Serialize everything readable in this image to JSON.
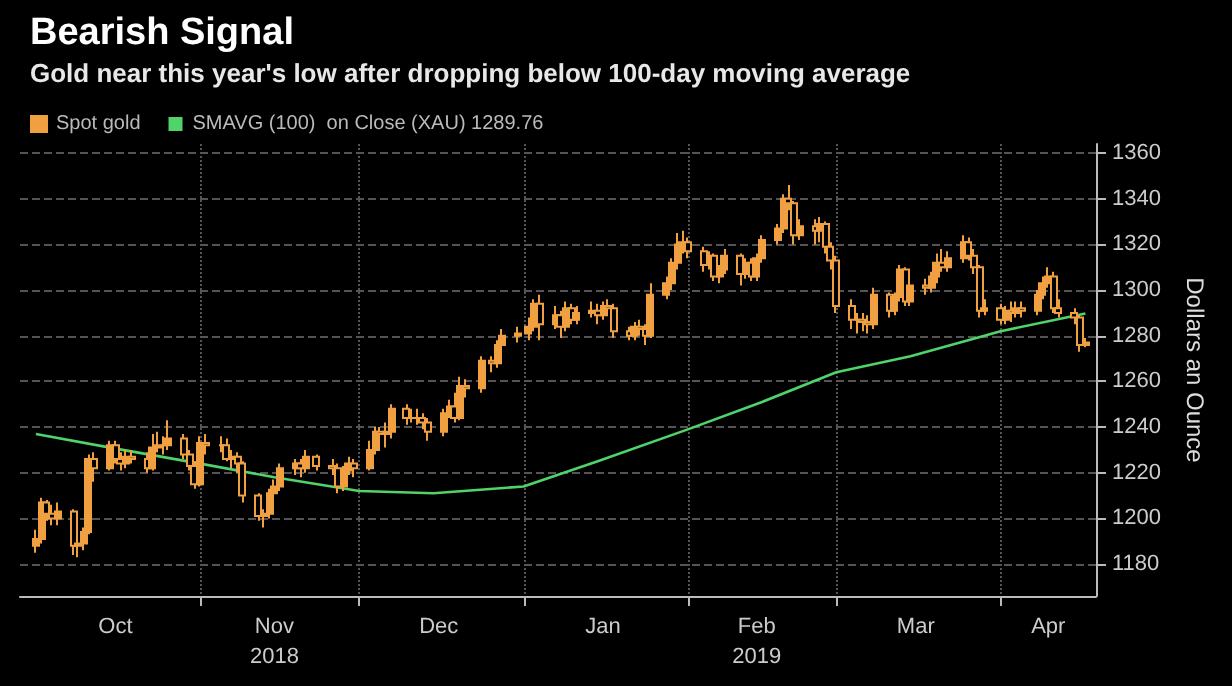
{
  "chart_data": {
    "type": "candlestick",
    "title": "Bearish Signal",
    "subtitle": "Gold near this year's low after dropping below 100-day moving average",
    "ylabel": "Dollars an Ounce",
    "xlim": [
      "2018-09-28",
      "2019-04-19"
    ],
    "xticks": [
      {
        "value": "2018-10-16",
        "label": "Oct"
      },
      {
        "value": "2018-11-01",
        "label": null
      },
      {
        "value": "2018-11-15",
        "label": "Nov\n2018"
      },
      {
        "value": "2018-12-01",
        "label": null
      },
      {
        "value": "2018-12-16",
        "label": "Dec"
      },
      {
        "value": "2019-01-01",
        "label": null
      },
      {
        "value": "2019-01-16",
        "label": "Jan"
      },
      {
        "value": "2019-02-01",
        "label": null
      },
      {
        "value": "2019-02-14",
        "label": "Feb\n2019"
      },
      {
        "value": "2019-03-01",
        "label": null
      },
      {
        "value": "2019-03-16",
        "label": "Mar"
      },
      {
        "value": "2019-04-01",
        "label": null
      },
      {
        "value": "2019-04-10",
        "label": "Apr"
      }
    ],
    "ylim": [
      1166,
      1364
    ],
    "yticks": [
      1180,
      1200,
      1220,
      1240,
      1260,
      1280,
      1300,
      1320,
      1340,
      1360
    ],
    "grid": true,
    "legend": "top left",
    "series": [
      {
        "name": "Spot gold",
        "type": "candlestick",
        "color": "#f0a040",
        "x": [
          "2018-10-01",
          "2018-10-02",
          "2018-10-03",
          "2018-10-04",
          "2018-10-05",
          "2018-10-08",
          "2018-10-09",
          "2018-10-10",
          "2018-10-11",
          "2018-10-12",
          "2018-10-15",
          "2018-10-16",
          "2018-10-17",
          "2018-10-18",
          "2018-10-19",
          "2018-10-22",
          "2018-10-23",
          "2018-10-24",
          "2018-10-25",
          "2018-10-26",
          "2018-10-29",
          "2018-10-30",
          "2018-10-31",
          "2018-11-01",
          "2018-11-02",
          "2018-11-05",
          "2018-11-06",
          "2018-11-07",
          "2018-11-08",
          "2018-11-09",
          "2018-11-12",
          "2018-11-13",
          "2018-11-14",
          "2018-11-15",
          "2018-11-16",
          "2018-11-19",
          "2018-11-20",
          "2018-11-21",
          "2018-11-23",
          "2018-11-26",
          "2018-11-27",
          "2018-11-28",
          "2018-11-29",
          "2018-11-30",
          "2018-12-03",
          "2018-12-04",
          "2018-12-05",
          "2018-12-06",
          "2018-12-07",
          "2018-12-10",
          "2018-12-11",
          "2018-12-12",
          "2018-12-13",
          "2018-12-14",
          "2018-12-17",
          "2018-12-18",
          "2018-12-19",
          "2018-12-20",
          "2018-12-21",
          "2018-12-24",
          "2018-12-26",
          "2018-12-27",
          "2018-12-28",
          "2018-12-31",
          "2019-01-02",
          "2019-01-03",
          "2019-01-04",
          "2019-01-07",
          "2019-01-08",
          "2019-01-09",
          "2019-01-10",
          "2019-01-11",
          "2019-01-14",
          "2019-01-15",
          "2019-01-16",
          "2019-01-17",
          "2019-01-18",
          "2019-01-21",
          "2019-01-22",
          "2019-01-23",
          "2019-01-24",
          "2019-01-25",
          "2019-01-28",
          "2019-01-29",
          "2019-01-30",
          "2019-01-31",
          "2019-02-01",
          "2019-02-04",
          "2019-02-05",
          "2019-02-06",
          "2019-02-07",
          "2019-02-08",
          "2019-02-11",
          "2019-02-12",
          "2019-02-13",
          "2019-02-14",
          "2019-02-15",
          "2019-02-18",
          "2019-02-19",
          "2019-02-20",
          "2019-02-21",
          "2019-02-22",
          "2019-02-25",
          "2019-02-26",
          "2019-02-27",
          "2019-02-28",
          "2019-03-01",
          "2019-03-04",
          "2019-03-05",
          "2019-03-06",
          "2019-03-07",
          "2019-03-08",
          "2019-03-11",
          "2019-03-12",
          "2019-03-13",
          "2019-03-14",
          "2019-03-15",
          "2019-03-18",
          "2019-03-19",
          "2019-03-20",
          "2019-03-21",
          "2019-03-22",
          "2019-03-25",
          "2019-03-26",
          "2019-03-27",
          "2019-03-28",
          "2019-03-29",
          "2019-04-01",
          "2019-04-02",
          "2019-04-03",
          "2019-04-04",
          "2019-04-05",
          "2019-04-08",
          "2019-04-09",
          "2019-04-10",
          "2019-04-11",
          "2019-04-12",
          "2019-04-15",
          "2019-04-16",
          "2019-04-17"
        ],
        "ohlc": [
          [
            1188,
            1195,
            1185,
            1191
          ],
          [
            1191,
            1209,
            1189,
            1207
          ],
          [
            1207,
            1208,
            1199,
            1202
          ],
          [
            1202,
            1206,
            1197,
            1200
          ],
          [
            1200,
            1207,
            1197,
            1203
          ],
          [
            1203,
            1204,
            1184,
            1188
          ],
          [
            1188,
            1192,
            1183,
            1189
          ],
          [
            1189,
            1196,
            1186,
            1194
          ],
          [
            1194,
            1228,
            1193,
            1226
          ],
          [
            1226,
            1229,
            1216,
            1222
          ],
          [
            1222,
            1234,
            1221,
            1232
          ],
          [
            1232,
            1234,
            1224,
            1226
          ],
          [
            1226,
            1229,
            1221,
            1224
          ],
          [
            1224,
            1230,
            1222,
            1227
          ],
          [
            1227,
            1230,
            1224,
            1226
          ],
          [
            1226,
            1229,
            1220,
            1222
          ],
          [
            1222,
            1237,
            1221,
            1231
          ],
          [
            1231,
            1238,
            1229,
            1232
          ],
          [
            1232,
            1236,
            1228,
            1232
          ],
          [
            1232,
            1243,
            1230,
            1235
          ],
          [
            1235,
            1237,
            1226,
            1228
          ],
          [
            1228,
            1230,
            1221,
            1223
          ],
          [
            1223,
            1225,
            1213,
            1215
          ],
          [
            1215,
            1236,
            1214,
            1233
          ],
          [
            1233,
            1237,
            1228,
            1232
          ],
          [
            1232,
            1236,
            1229,
            1232
          ],
          [
            1232,
            1235,
            1225,
            1226
          ],
          [
            1226,
            1230,
            1222,
            1227
          ],
          [
            1227,
            1229,
            1220,
            1224
          ],
          [
            1224,
            1225,
            1207,
            1210
          ],
          [
            1210,
            1211,
            1199,
            1201
          ],
          [
            1201,
            1204,
            1196,
            1202
          ],
          [
            1202,
            1213,
            1200,
            1211
          ],
          [
            1211,
            1217,
            1208,
            1214
          ],
          [
            1214,
            1224,
            1212,
            1222
          ],
          [
            1222,
            1226,
            1219,
            1224
          ],
          [
            1224,
            1226,
            1218,
            1222
          ],
          [
            1222,
            1230,
            1220,
            1227
          ],
          [
            1227,
            1228,
            1221,
            1223
          ],
          [
            1223,
            1226,
            1219,
            1222
          ],
          [
            1222,
            1224,
            1211,
            1214
          ],
          [
            1214,
            1223,
            1212,
            1221
          ],
          [
            1221,
            1227,
            1219,
            1224
          ],
          [
            1224,
            1226,
            1218,
            1222
          ],
          [
            1222,
            1234,
            1221,
            1230
          ],
          [
            1230,
            1240,
            1228,
            1238
          ],
          [
            1238,
            1240,
            1234,
            1237
          ],
          [
            1237,
            1242,
            1231,
            1238
          ],
          [
            1238,
            1250,
            1235,
            1248
          ],
          [
            1248,
            1250,
            1241,
            1244
          ],
          [
            1244,
            1248,
            1242,
            1244
          ],
          [
            1244,
            1248,
            1241,
            1244
          ],
          [
            1244,
            1246,
            1239,
            1242
          ],
          [
            1242,
            1244,
            1234,
            1238
          ],
          [
            1238,
            1248,
            1236,
            1246
          ],
          [
            1246,
            1252,
            1244,
            1249
          ],
          [
            1249,
            1255,
            1242,
            1244
          ],
          [
            1244,
            1262,
            1243,
            1258
          ],
          [
            1258,
            1261,
            1253,
            1257
          ],
          [
            1257,
            1271,
            1255,
            1269
          ],
          [
            1269,
            1271,
            1264,
            1268
          ],
          [
            1268,
            1278,
            1266,
            1276
          ],
          [
            1276,
            1283,
            1274,
            1280
          ],
          [
            1280,
            1284,
            1277,
            1281
          ],
          [
            1281,
            1288,
            1278,
            1284
          ],
          [
            1284,
            1296,
            1282,
            1294
          ],
          [
            1294,
            1298,
            1278,
            1285
          ],
          [
            1285,
            1293,
            1283,
            1289
          ],
          [
            1289,
            1291,
            1279,
            1284
          ],
          [
            1284,
            1295,
            1282,
            1292
          ],
          [
            1292,
            1294,
            1285,
            1287
          ],
          [
            1287,
            1293,
            1285,
            1290
          ],
          [
            1290,
            1295,
            1288,
            1291
          ],
          [
            1291,
            1294,
            1285,
            1289
          ],
          [
            1289,
            1295,
            1287,
            1293
          ],
          [
            1293,
            1296,
            1289,
            1292
          ],
          [
            1292,
            1294,
            1279,
            1282
          ],
          [
            1282,
            1284,
            1278,
            1280
          ],
          [
            1280,
            1286,
            1278,
            1284
          ],
          [
            1284,
            1287,
            1280,
            1283
          ],
          [
            1283,
            1285,
            1276,
            1280
          ],
          [
            1280,
            1303,
            1279,
            1298
          ],
          [
            1298,
            1306,
            1296,
            1303
          ],
          [
            1303,
            1314,
            1300,
            1312
          ],
          [
            1312,
            1325,
            1309,
            1320
          ],
          [
            1320,
            1326,
            1316,
            1321
          ],
          [
            1321,
            1323,
            1314,
            1317
          ],
          [
            1317,
            1319,
            1308,
            1311
          ],
          [
            1311,
            1317,
            1309,
            1315
          ],
          [
            1315,
            1316,
            1304,
            1306
          ],
          [
            1306,
            1311,
            1303,
            1309
          ],
          [
            1309,
            1318,
            1307,
            1315
          ],
          [
            1315,
            1316,
            1302,
            1307
          ],
          [
            1307,
            1314,
            1305,
            1312
          ],
          [
            1312,
            1314,
            1304,
            1306
          ],
          [
            1306,
            1316,
            1304,
            1314
          ],
          [
            1314,
            1324,
            1312,
            1322
          ],
          [
            1322,
            1329,
            1320,
            1327
          ],
          [
            1327,
            1342,
            1325,
            1340
          ],
          [
            1340,
            1346,
            1335,
            1338
          ],
          [
            1338,
            1339,
            1320,
            1324
          ],
          [
            1324,
            1331,
            1322,
            1328
          ],
          [
            1328,
            1331,
            1320,
            1326
          ],
          [
            1326,
            1332,
            1321,
            1329
          ],
          [
            1329,
            1330,
            1316,
            1319
          ],
          [
            1319,
            1321,
            1309,
            1313
          ],
          [
            1313,
            1315,
            1290,
            1293
          ],
          [
            1293,
            1296,
            1283,
            1287
          ],
          [
            1287,
            1290,
            1281,
            1287
          ],
          [
            1287,
            1290,
            1282,
            1286
          ],
          [
            1286,
            1289,
            1281,
            1285
          ],
          [
            1285,
            1301,
            1283,
            1298
          ],
          [
            1298,
            1299,
            1288,
            1291
          ],
          [
            1291,
            1299,
            1289,
            1297
          ],
          [
            1297,
            1311,
            1295,
            1309
          ],
          [
            1309,
            1310,
            1293,
            1295
          ],
          [
            1295,
            1304,
            1293,
            1302
          ],
          [
            1302,
            1305,
            1298,
            1301
          ],
          [
            1301,
            1308,
            1299,
            1306
          ],
          [
            1306,
            1316,
            1303,
            1312
          ],
          [
            1312,
            1318,
            1308,
            1310
          ],
          [
            1310,
            1317,
            1308,
            1314
          ],
          [
            1314,
            1324,
            1312,
            1321
          ],
          [
            1321,
            1323,
            1313,
            1315
          ],
          [
            1315,
            1318,
            1307,
            1310
          ],
          [
            1310,
            1311,
            1288,
            1291
          ],
          [
            1291,
            1296,
            1289,
            1292
          ],
          [
            1292,
            1294,
            1285,
            1287
          ],
          [
            1287,
            1293,
            1285,
            1291
          ],
          [
            1291,
            1295,
            1286,
            1290
          ],
          [
            1290,
            1295,
            1288,
            1292
          ],
          [
            1292,
            1295,
            1288,
            1291
          ],
          [
            1291,
            1300,
            1289,
            1298
          ],
          [
            1298,
            1306,
            1296,
            1303
          ],
          [
            1303,
            1310,
            1301,
            1306
          ],
          [
            1306,
            1308,
            1290,
            1292
          ],
          [
            1292,
            1296,
            1288,
            1290
          ],
          [
            1290,
            1292,
            1285,
            1288
          ],
          [
            1288,
            1289,
            1273,
            1276
          ],
          [
            1276,
            1279,
            1275,
            1277
          ]
        ]
      },
      {
        "name": "SMAVG (100)  on Close (XAU) 1289.76",
        "type": "line",
        "color": "#4fd36a",
        "line_style": "solid",
        "marker": "none",
        "x": [
          "2018-10-01",
          "2018-10-15",
          "2018-11-01",
          "2018-11-15",
          "2018-12-01",
          "2018-12-15",
          "2019-01-01",
          "2019-01-15",
          "2019-02-01",
          "2019-02-15",
          "2019-03-01",
          "2019-03-15",
          "2019-04-01",
          "2019-04-17"
        ],
        "values": [
          1237,
          1231,
          1224,
          1218,
          1212,
          1211,
          1214,
          1225,
          1239,
          1251,
          1264,
          1271,
          1282,
          1289.76
        ]
      }
    ]
  }
}
